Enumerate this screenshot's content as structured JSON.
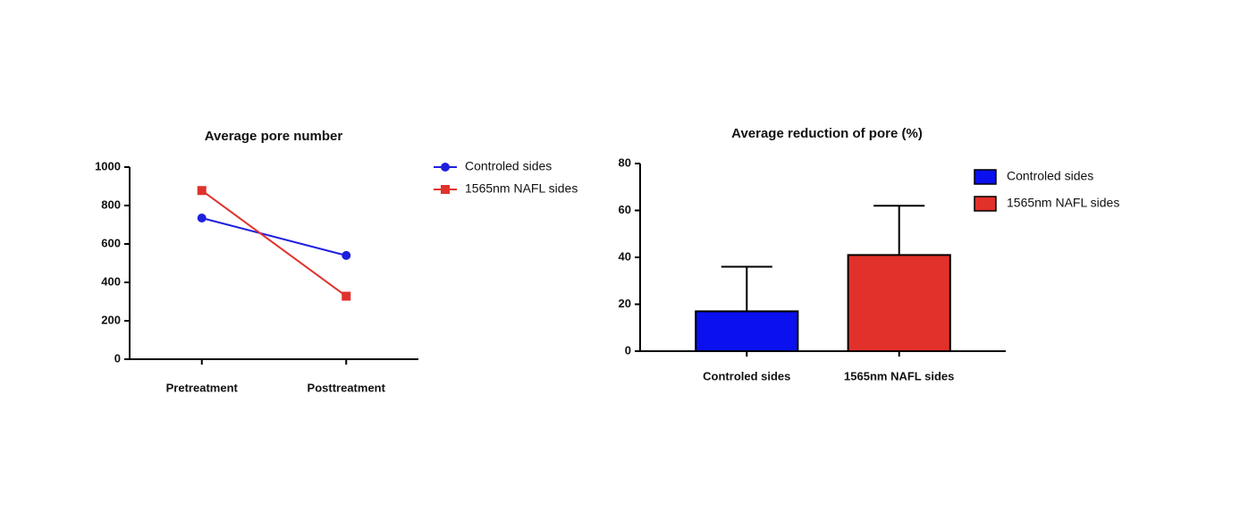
{
  "chart_data": [
    {
      "type": "line",
      "title": "Average pore number",
      "categories": [
        "Pretreatment",
        "Posttreatment"
      ],
      "series": [
        {
          "name": "Controled sides",
          "color": "#1f1fe0",
          "marker": "circle",
          "values": [
            735,
            540
          ]
        },
        {
          "name": "1565nm NAFL sides",
          "color": "#e0322d",
          "marker": "square",
          "values": [
            878,
            328
          ]
        }
      ],
      "ylim": [
        0,
        1000
      ],
      "yticks": [
        0,
        200,
        400,
        600,
        800,
        1000
      ]
    },
    {
      "type": "bar",
      "title": "Average reduction of pore (%)",
      "categories": [
        "Controled sides",
        "1565nm NAFL sides"
      ],
      "values": [
        17,
        41
      ],
      "errors": [
        19,
        21
      ],
      "colors": [
        "#0a10ee",
        "#e2302a"
      ],
      "ylim": [
        0,
        80
      ],
      "yticks": [
        0,
        20,
        40,
        60,
        80
      ]
    }
  ]
}
